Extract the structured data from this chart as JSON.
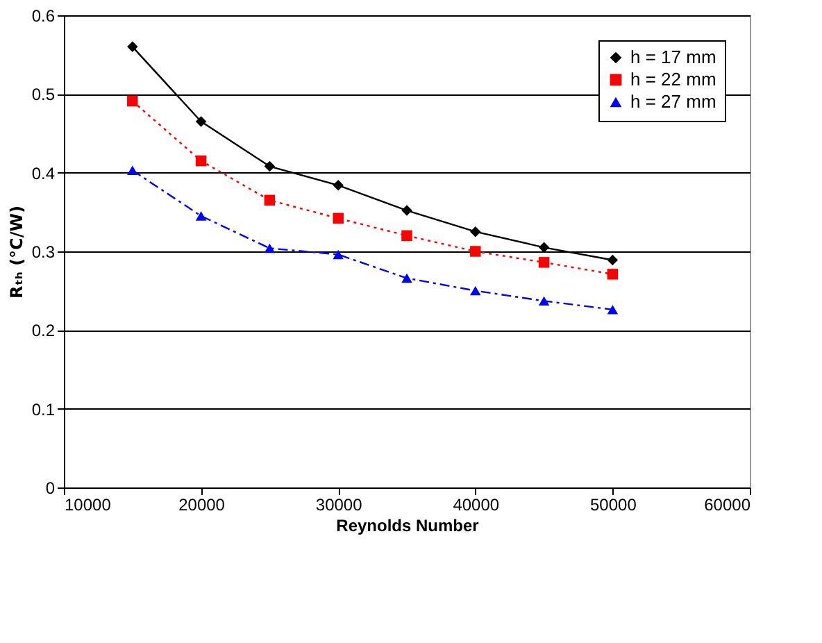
{
  "chart_data": {
    "type": "line",
    "xlabel": "Reynolds Number",
    "ylabel": "Rₜₕ (°C/W)",
    "x": [
      15000,
      20000,
      25000,
      30000,
      35000,
      40000,
      45000,
      50000
    ],
    "series": [
      {
        "name": "h = 17 mm",
        "color": "#000000",
        "marker": "diamond",
        "line_style": "solid",
        "values": [
          0.56,
          0.465,
          0.408,
          0.384,
          0.352,
          0.325,
          0.305,
          0.289
        ]
      },
      {
        "name": "h = 22 mm",
        "color": "#ff0000",
        "marker": "square",
        "line_style": "dotted",
        "values": [
          0.491,
          0.415,
          0.365,
          0.342,
          0.32,
          0.3,
          0.286,
          0.271
        ]
      },
      {
        "name": "h = 27 mm",
        "color": "#0000ff",
        "marker": "triangle",
        "line_style": "dashed",
        "values": [
          0.403,
          0.345,
          0.304,
          0.296,
          0.266,
          0.25,
          0.237,
          0.226
        ]
      }
    ],
    "xlim": [
      10000,
      60000
    ],
    "xticks": [
      10000,
      20000,
      30000,
      40000,
      50000,
      60000
    ],
    "ylim": [
      0,
      0.6
    ],
    "yticks": [
      0,
      0.1,
      0.2,
      0.3,
      0.4,
      0.5,
      0.6
    ],
    "grid": "y",
    "legend": "top right"
  }
}
